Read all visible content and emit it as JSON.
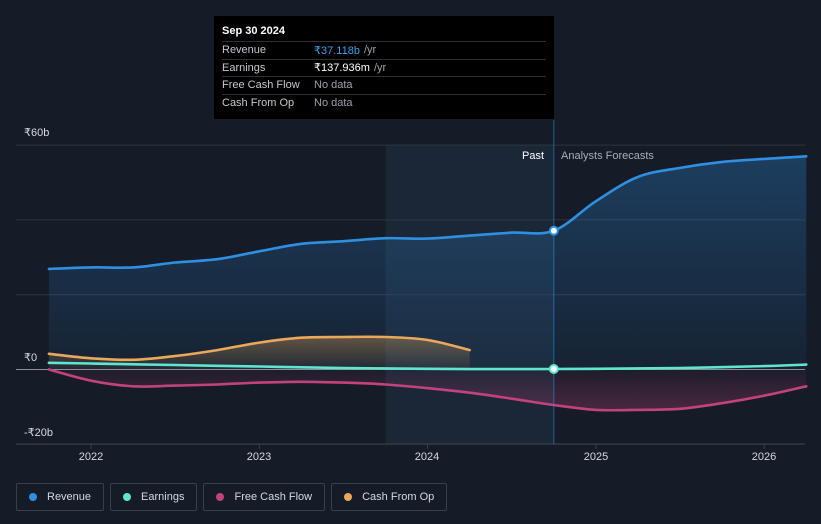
{
  "tooltip": {
    "date": "Sep 30 2024",
    "rows": [
      {
        "label": "Revenue",
        "value": "₹37.118b",
        "unit": "/yr"
      },
      {
        "label": "Earnings",
        "value": "₹137.936m",
        "unit": "/yr"
      },
      {
        "label": "Free Cash Flow",
        "value": "No data",
        "unit": ""
      },
      {
        "label": "Cash From Op",
        "value": "No data",
        "unit": ""
      }
    ]
  },
  "labels": {
    "past": "Past",
    "forecast": "Analysts Forecasts"
  },
  "legend": [
    {
      "label": "Revenue",
      "color": "#2f8fe0"
    },
    {
      "label": "Earnings",
      "color": "#5ee6d0"
    },
    {
      "label": "Free Cash Flow",
      "color": "#c2437c"
    },
    {
      "label": "Cash From Op",
      "color": "#e9a85a"
    }
  ],
  "chart_data": {
    "type": "line",
    "y_unit": "₹ billions",
    "ylim": [
      -20,
      60
    ],
    "yticks": [
      "₹60b",
      "₹0",
      "-₹20b"
    ],
    "xlim": [
      2021.7,
      2026.25
    ],
    "xticks": [
      "2022",
      "2023",
      "2024",
      "2025",
      "2026"
    ],
    "past_forecast_boundary": 2024.75,
    "highlight_x": 2024.75,
    "series": [
      {
        "name": "Revenue",
        "color": "#2f8fe0",
        "x": [
          2021.75,
          2022.0,
          2022.25,
          2022.5,
          2022.75,
          2023.0,
          2023.25,
          2023.5,
          2023.75,
          2024.0,
          2024.25,
          2024.5,
          2024.75,
          2025.0,
          2025.25,
          2025.5,
          2025.75,
          2026.0,
          2026.25
        ],
        "values": [
          26.9,
          27.3,
          27.3,
          28.6,
          29.5,
          31.6,
          33.6,
          34.3,
          35.1,
          35.0,
          35.8,
          36.6,
          37.1,
          45.0,
          51.5,
          53.9,
          55.5,
          56.3,
          57.0
        ]
      },
      {
        "name": "Earnings",
        "color": "#5ee6d0",
        "x": [
          2021.75,
          2022.0,
          2022.25,
          2022.5,
          2022.75,
          2023.0,
          2023.25,
          2023.5,
          2023.75,
          2024.0,
          2024.25,
          2024.5,
          2024.75,
          2025.0,
          2025.5,
          2026.0,
          2026.25
        ],
        "values": [
          1.8,
          1.6,
          1.4,
          1.2,
          1.0,
          0.8,
          0.6,
          0.4,
          0.3,
          0.2,
          0.1,
          0.1,
          0.14,
          0.2,
          0.4,
          0.9,
          1.3
        ]
      },
      {
        "name": "Free Cash Flow",
        "color": "#c2437c",
        "x": [
          2021.75,
          2022.0,
          2022.25,
          2022.5,
          2022.75,
          2023.0,
          2023.25,
          2023.5,
          2023.75,
          2024.0,
          2024.25,
          2024.5,
          2024.75,
          2025.0,
          2025.25,
          2025.5,
          2025.75,
          2026.0,
          2026.25
        ],
        "values": [
          0.0,
          -3.0,
          -4.5,
          -4.3,
          -4.0,
          -3.5,
          -3.3,
          -3.5,
          -4.0,
          -5.0,
          -6.2,
          -7.8,
          -9.5,
          -10.8,
          -10.8,
          -10.5,
          -9.0,
          -7.0,
          -4.5
        ]
      },
      {
        "name": "Cash From Op",
        "color": "#e9a85a",
        "x": [
          2021.75,
          2022.0,
          2022.25,
          2022.5,
          2022.75,
          2023.0,
          2023.25,
          2023.5,
          2023.75,
          2024.0,
          2024.25
        ],
        "values": [
          4.2,
          3.0,
          2.6,
          3.6,
          5.2,
          7.2,
          8.5,
          8.7,
          8.7,
          7.9,
          5.2
        ]
      }
    ]
  }
}
